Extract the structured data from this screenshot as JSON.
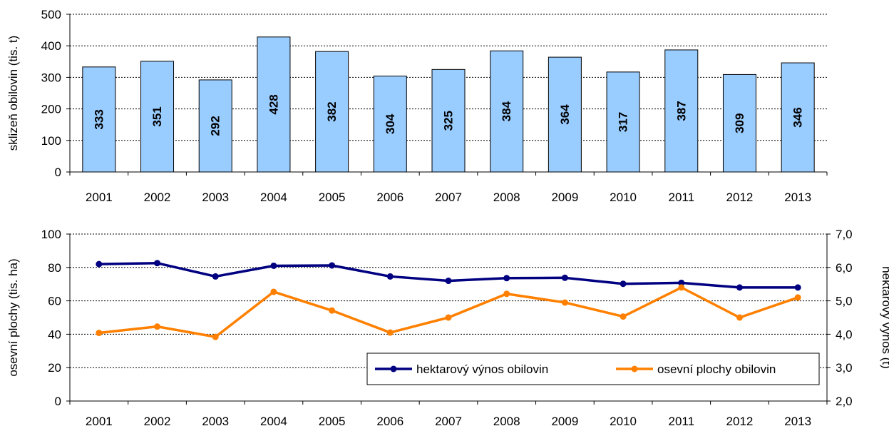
{
  "chart_data": [
    {
      "type": "bar",
      "categories": [
        "2001",
        "2002",
        "2003",
        "2004",
        "2005",
        "2006",
        "2007",
        "2008",
        "2009",
        "2010",
        "2011",
        "2012",
        "2013"
      ],
      "values": [
        333,
        351,
        292,
        428,
        382,
        304,
        325,
        384,
        364,
        317,
        387,
        309,
        346
      ],
      "data_labels": [
        "333",
        "351",
        "292",
        "428",
        "382",
        "304",
        "325",
        "384",
        "364",
        "317",
        "387",
        "309",
        "346"
      ],
      "ylabel": "sklizeň obilovin (tis. t)",
      "ylim": [
        0,
        500
      ],
      "yticks": [
        "0",
        "100",
        "200",
        "300",
        "400",
        "500"
      ],
      "grid": true,
      "bar_color": "#99ccff"
    },
    {
      "type": "line",
      "categories": [
        "2001",
        "2002",
        "2003",
        "2004",
        "2005",
        "2006",
        "2007",
        "2008",
        "2009",
        "2010",
        "2011",
        "2012",
        "2013"
      ],
      "ylabel_left": "osevní plochy (tis. ha)",
      "ylabel_right": "hektarový výnos (t)",
      "ylim_left": [
        0,
        100
      ],
      "ylim_right": [
        2.0,
        7.0
      ],
      "yticks_left": [
        "0",
        "20",
        "40",
        "60",
        "80",
        "100"
      ],
      "yticks_right": [
        "2,0",
        "3,0",
        "4,0",
        "5,0",
        "6,0",
        "7,0"
      ],
      "grid": true,
      "legend_position": "bottom-right",
      "series": [
        {
          "name": "hektarový výnos obilovin",
          "axis": "right",
          "color": "#000080",
          "values": [
            6.1,
            6.13,
            5.73,
            6.05,
            6.06,
            5.73,
            5.6,
            5.68,
            5.69,
            5.51,
            5.54,
            5.4,
            5.4
          ]
        },
        {
          "name": "osevní plochy obilovin",
          "axis": "right",
          "color": "#ff8000",
          "values": [
            4.04,
            4.23,
            3.92,
            5.27,
            4.71,
            4.05,
            4.5,
            5.21,
            4.95,
            4.53,
            5.4,
            4.5,
            5.1
          ]
        }
      ]
    }
  ]
}
